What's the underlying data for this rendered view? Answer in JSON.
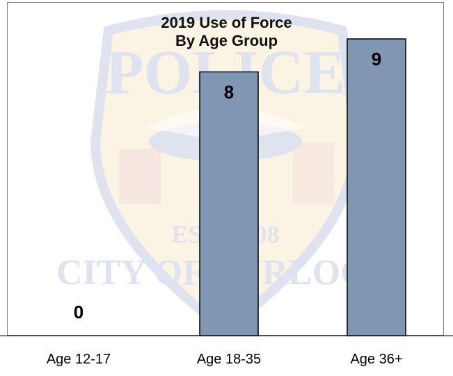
{
  "chart_data": {
    "type": "bar",
    "title": [
      "2019 Use of Force",
      "By Age Group"
    ],
    "categories": [
      "Age 12-17",
      "Age 18-35",
      "Age 36+"
    ],
    "values": [
      0,
      8,
      9
    ],
    "data_labels": [
      "0",
      "8",
      "9"
    ],
    "ylim": [
      0,
      10
    ],
    "grid": false,
    "legend": "none",
    "bar_color": "#7f97b2",
    "bar_outline_color": "#000000"
  },
  "watermark": {
    "description": "faded police badge emblem",
    "text": [
      "POLICE",
      "CITY OF TURLOCK",
      "EST. 1908"
    ],
    "colors": {
      "gold": "#e7c15c",
      "blue": "#3f58a0"
    }
  }
}
